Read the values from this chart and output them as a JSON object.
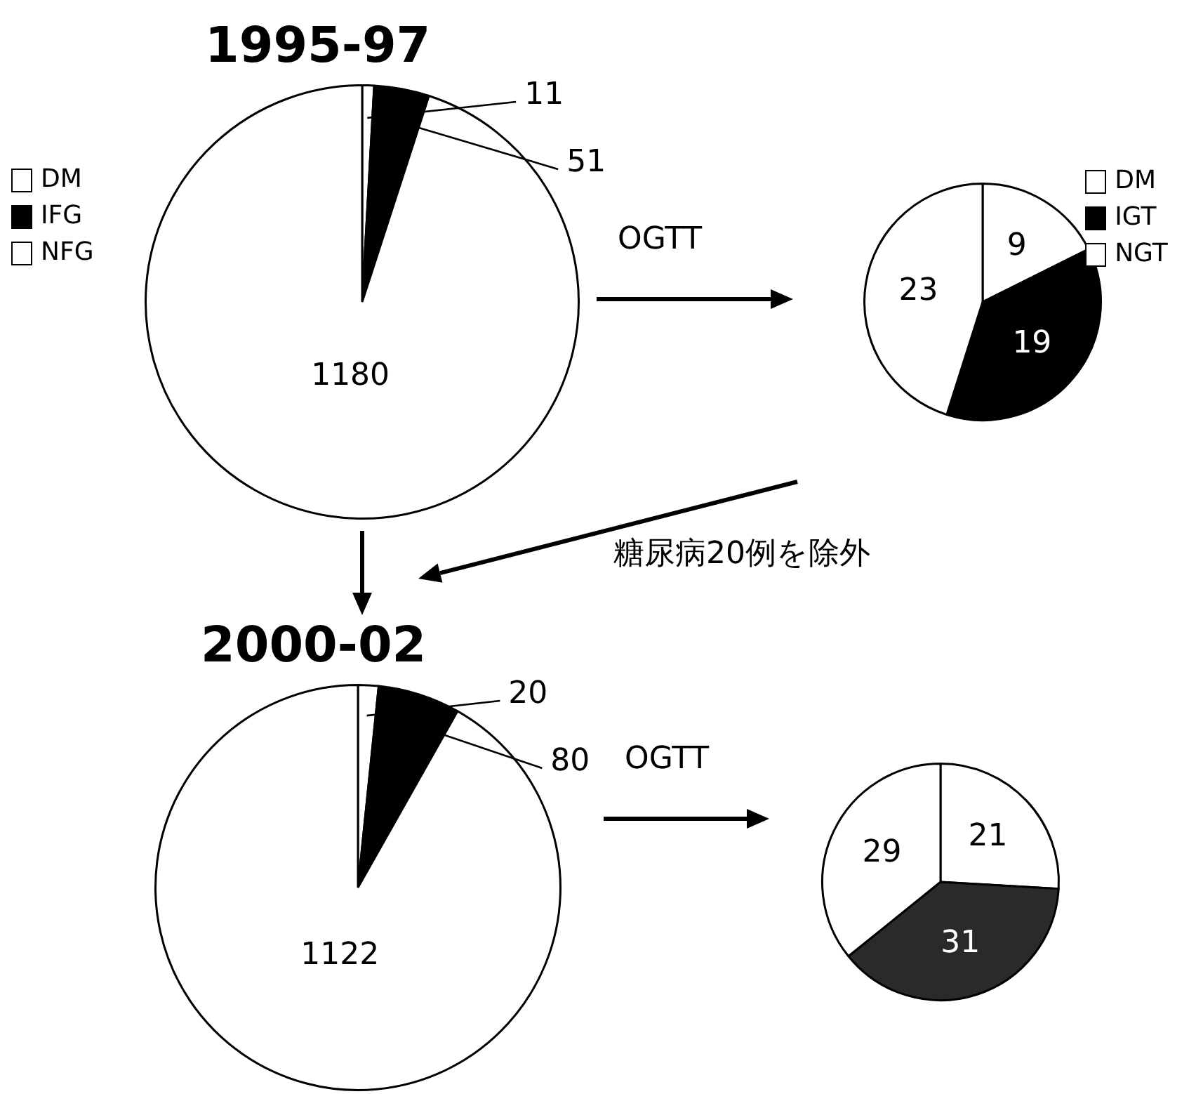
{
  "chart_data": [
    {
      "type": "pie",
      "title": "1995-97",
      "categories": [
        "DM",
        "IFG",
        "NFG"
      ],
      "values": [
        11,
        51,
        1180
      ],
      "colors": [
        "#ffffff",
        "#000000",
        "#ffffff"
      ],
      "data_labels": true,
      "legend": "left",
      "annotations": [
        "OGTT"
      ]
    },
    {
      "type": "pie",
      "categories": [
        "DM",
        "IGT",
        "NGT"
      ],
      "values": [
        9,
        19,
        23
      ],
      "colors": [
        "#ffffff",
        "#000000",
        "#ffffff"
      ],
      "data_labels": true,
      "legend": "right",
      "annotations": [
        "糖尿病20例を除外"
      ]
    },
    {
      "type": "pie",
      "title": "2000-02",
      "categories": [
        null,
        null,
        null
      ],
      "values": [
        20,
        80,
        1122
      ],
      "colors": [
        "#ffffff",
        "#000000",
        "#ffffff"
      ],
      "data_labels": true,
      "annotations": [
        "OGTT"
      ]
    },
    {
      "type": "pie",
      "categories": [
        null,
        null,
        null
      ],
      "values": [
        21,
        31,
        29
      ],
      "colors": [
        "#ffffff",
        "#2a2a2a",
        "#ffffff"
      ],
      "data_labels": true
    }
  ]
}
